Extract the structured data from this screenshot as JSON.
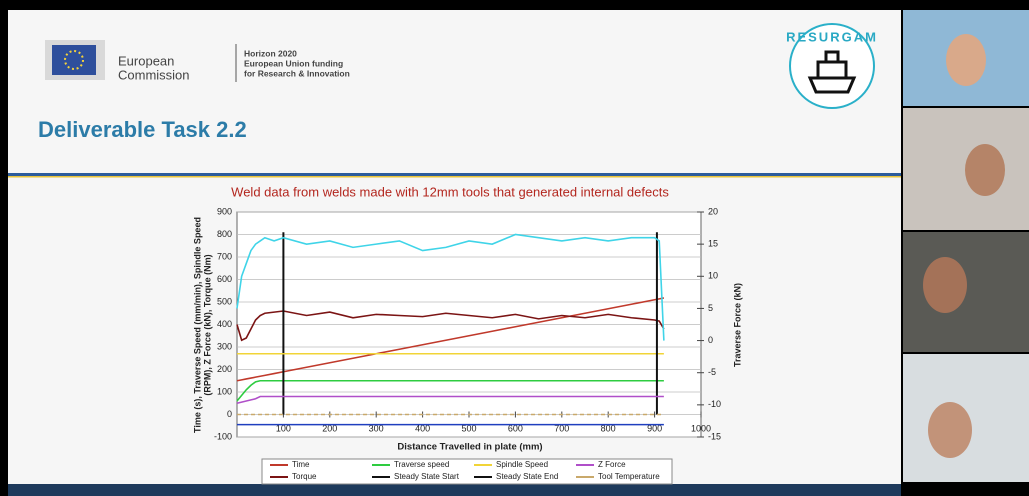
{
  "slide": {
    "header": {
      "commission_line1": "European",
      "commission_line2": "Commission",
      "programme_lines": [
        "Horizon 2020",
        "European Union funding",
        "for Research & Innovation"
      ],
      "logo_text": "RESURGAM"
    },
    "title": "Deliverable Task 2.2"
  },
  "chart_data": {
    "type": "line",
    "title": "Weld data from welds made with 12mm tools that generated internal defects",
    "xlabel": "Distance Travelled in plate (mm)",
    "ylabel_lines": [
      "Time (s), Traverse Speed (mm/min), Spindle Speed",
      "(RPM), Z Force (kN), Torque (Nm)"
    ],
    "y2label": "Traverse Force (kN)",
    "x": [
      0,
      10,
      20,
      30,
      40,
      50,
      60,
      80,
      100,
      150,
      200,
      250,
      300,
      350,
      400,
      450,
      500,
      550,
      600,
      650,
      700,
      750,
      800,
      850,
      900,
      910,
      920
    ],
    "xlim": [
      0,
      1000
    ],
    "xticks": [
      100,
      200,
      300,
      400,
      500,
      600,
      700,
      800,
      900,
      1000
    ],
    "ylim": [
      -100,
      900
    ],
    "yticks": [
      -100,
      0,
      100,
      200,
      300,
      400,
      500,
      600,
      700,
      800,
      900
    ],
    "y2lim": [
      -15,
      20
    ],
    "y2ticks": [
      -15,
      -10,
      -5,
      0,
      5,
      10,
      15,
      20
    ],
    "grid": true,
    "series": [
      {
        "name": "Time",
        "color": "#c0392b",
        "values": [
          150,
          154,
          158,
          162,
          166,
          170,
          174,
          182,
          190,
          210,
          230,
          250,
          270,
          290,
          310,
          330,
          350,
          370,
          390,
          410,
          430,
          450,
          470,
          490,
          510,
          514,
          518
        ]
      },
      {
        "name": "Torque",
        "color": "#7b1414",
        "values": [
          400,
          330,
          340,
          380,
          420,
          440,
          450,
          455,
          460,
          440,
          455,
          430,
          445,
          440,
          435,
          450,
          440,
          430,
          445,
          425,
          440,
          430,
          445,
          430,
          420,
          415,
          380
        ]
      },
      {
        "name": "Traverse speed",
        "color": "#2ecc40",
        "values": [
          60,
          85,
          110,
          130,
          145,
          150,
          150,
          150,
          150,
          150,
          150,
          150,
          150,
          150,
          150,
          150,
          150,
          150,
          150,
          150,
          150,
          150,
          150,
          150,
          150,
          150,
          150
        ]
      },
      {
        "name": "Steady State Start",
        "color": "#111111",
        "vline": 100,
        "span": [
          0,
          810
        ]
      },
      {
        "name": "Spindle Speed",
        "color": "#f1d437",
        "values": [
          270,
          270,
          270,
          270,
          270,
          270,
          270,
          270,
          270,
          270,
          270,
          270,
          270,
          270,
          270,
          270,
          270,
          270,
          270,
          270,
          270,
          270,
          270,
          270,
          270,
          270,
          270
        ]
      },
      {
        "name": "Steady State End",
        "color": "#111111",
        "vline": 905,
        "span": [
          0,
          810
        ]
      },
      {
        "name": "Z Force",
        "color": "#b04fc9",
        "values": [
          50,
          55,
          60,
          65,
          70,
          80,
          80,
          80,
          80,
          80,
          80,
          80,
          80,
          80,
          80,
          80,
          80,
          80,
          80,
          80,
          80,
          80,
          80,
          80,
          80,
          80,
          80
        ]
      },
      {
        "name": "Tool Temperature",
        "color": "#c9a96b",
        "dashed": true,
        "values": [
          0,
          0,
          0,
          0,
          0,
          0,
          0,
          0,
          0,
          0,
          0,
          0,
          0,
          0,
          0,
          0,
          0,
          0,
          0,
          0,
          0,
          0,
          0,
          0,
          0,
          0,
          0
        ]
      },
      {
        "color": "#3fd4e8",
        "axis": "y2",
        "values": [
          5,
          10,
          12,
          14,
          15,
          15.5,
          16,
          15.5,
          16,
          15,
          15.5,
          14.5,
          15,
          15.5,
          14,
          14.5,
          15.5,
          15,
          16.5,
          16,
          15.5,
          16,
          15.5,
          16,
          16,
          15.5,
          0
        ]
      },
      {
        "color": "#1f3fbf",
        "values": [
          -45,
          -45,
          -45,
          -45,
          -45,
          -45,
          -45,
          -45,
          -45,
          -45,
          -45,
          -45,
          -45,
          -45,
          -45,
          -45,
          -45,
          -45,
          -45,
          -45,
          -45,
          -45,
          -45,
          -45,
          -45,
          -45,
          -45
        ]
      }
    ]
  }
}
